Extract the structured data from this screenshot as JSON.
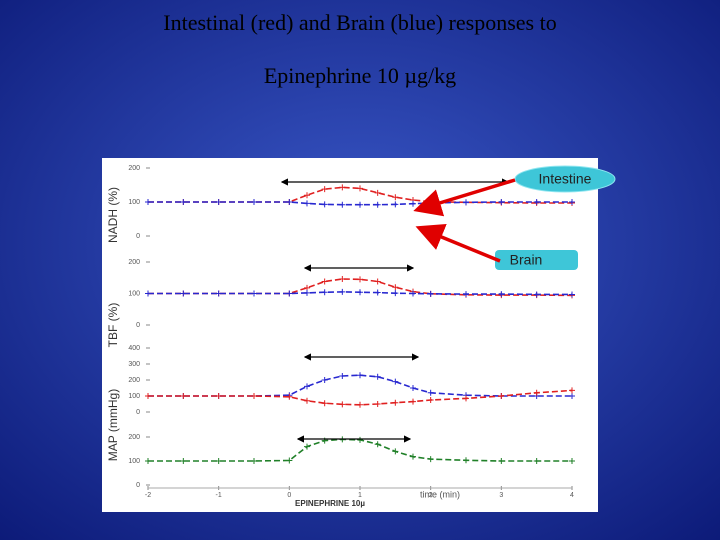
{
  "title": [
    "Intestinal (red) and Brain (blue) responses to",
    "Epinephrine 10 µg/kg"
  ],
  "chart_data": [
    {
      "type": "line",
      "y_label": "NADH (%)",
      "ylim": [
        0,
        200
      ],
      "yticks": [
        0,
        100,
        200
      ],
      "x": [
        -2,
        -1.5,
        -1,
        -0.5,
        0,
        0.25,
        0.5,
        0.75,
        1,
        1.25,
        1.5,
        1.75,
        2,
        2.5,
        3,
        3.5,
        4
      ],
      "series": [
        {
          "name": "Intestine",
          "color": "#e02020",
          "values": [
            100,
            100,
            100,
            100,
            100,
            120,
            138,
            143,
            140,
            127,
            114,
            106,
            101,
            99,
            98,
            97,
            97
          ]
        },
        {
          "name": "Brain",
          "color": "#2828d0",
          "values": [
            100,
            100,
            100,
            100,
            100,
            96,
            93,
            92,
            92,
            92,
            93,
            95,
            97,
            99,
            100,
            100,
            100
          ]
        }
      ]
    },
    {
      "type": "line",
      "y_label": "TBF (%)",
      "ylim": [
        0,
        200
      ],
      "yticks": [
        0,
        100,
        200
      ],
      "x": [
        -2,
        -1.5,
        -1,
        -0.5,
        0,
        0.25,
        0.5,
        0.75,
        1,
        1.25,
        1.5,
        1.75,
        2,
        2.5,
        3,
        3.5,
        4
      ],
      "series": [
        {
          "name": "Intestine",
          "color": "#e02020",
          "values": [
            100,
            100,
            100,
            100,
            100,
            118,
            138,
            146,
            145,
            138,
            120,
            106,
            99,
            96,
            95,
            95,
            94
          ]
        },
        {
          "name": "Brain",
          "color": "#2828d0",
          "values": [
            100,
            100,
            100,
            100,
            100,
            102,
            104,
            105,
            104,
            103,
            101,
            100,
            99,
            98,
            98,
            97,
            97
          ]
        }
      ]
    },
    {
      "type": "line",
      "y_label": "MAP (mmHg)",
      "ylim": [
        0,
        400
      ],
      "yticks": [
        0,
        100,
        200,
        300,
        400
      ],
      "x": [
        -2,
        -1.5,
        -1,
        -0.5,
        0,
        0.25,
        0.5,
        0.75,
        1,
        1.25,
        1.5,
        1.75,
        2,
        2.5,
        3,
        3.5,
        4
      ],
      "series": [
        {
          "name": "Brain",
          "color": "#2828d0",
          "values": [
            100,
            100,
            100,
            100,
            105,
            160,
            200,
            225,
            230,
            220,
            190,
            150,
            120,
            105,
            100,
            100,
            100
          ]
        },
        {
          "name": "Intestine",
          "color": "#e02020",
          "values": [
            100,
            100,
            100,
            100,
            95,
            70,
            55,
            48,
            45,
            50,
            58,
            65,
            75,
            85,
            100,
            120,
            135
          ]
        }
      ]
    },
    {
      "type": "line",
      "xlim": [
        -2,
        4
      ],
      "xticks": [
        -2,
        -1,
        0,
        1,
        2,
        3,
        4
      ],
      "x_label": "time (min)",
      "x_note": "EPINEPHRINE 10µ",
      "ylim": [
        0,
        200
      ],
      "yticks": [
        0,
        100,
        200
      ],
      "x": [
        -2,
        -1.5,
        -1,
        -0.5,
        0,
        0.25,
        0.5,
        0.75,
        1,
        1.25,
        1.5,
        1.75,
        2,
        2.5,
        3,
        3.5,
        4
      ],
      "series": [
        {
          "name": "MAP",
          "color": "#208028",
          "values": [
            100,
            100,
            100,
            100,
            102,
            160,
            185,
            190,
            188,
            170,
            140,
            118,
            108,
            103,
            100,
            100,
            100
          ]
        }
      ]
    }
  ],
  "callouts": {
    "intestine": "Intestine",
    "brain": "Brain"
  }
}
